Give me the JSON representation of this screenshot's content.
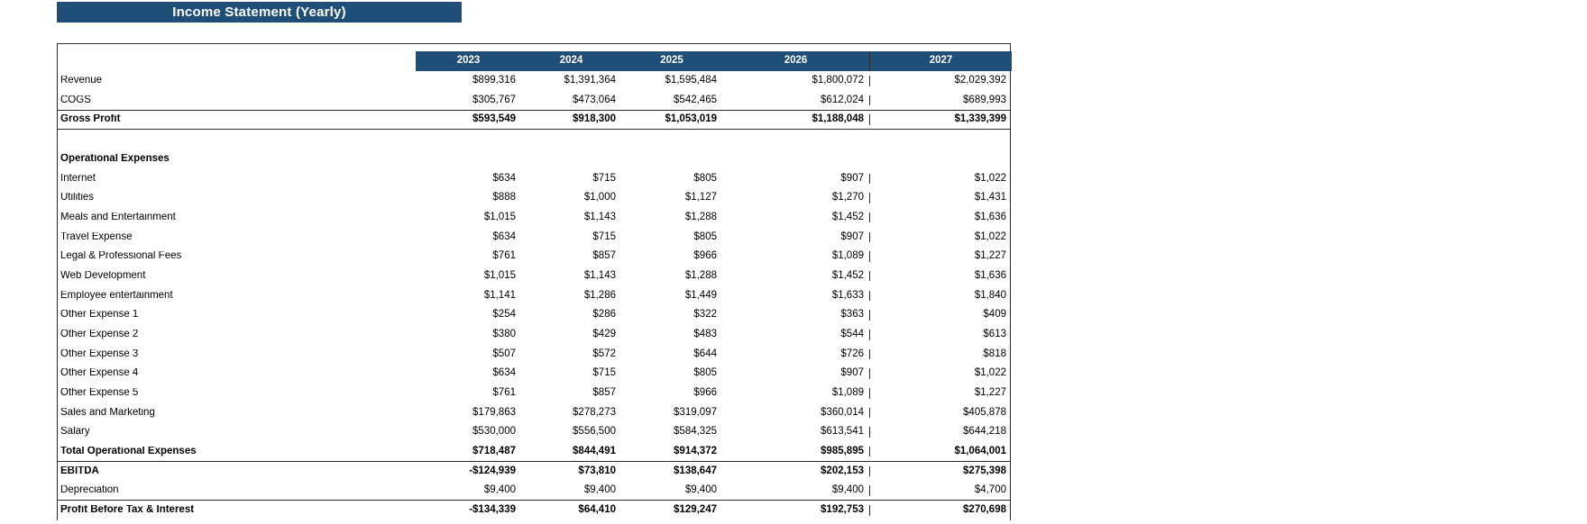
{
  "title": "Income Statement (Yearly)",
  "colors": {
    "banner_bg": "#1f4e79",
    "header_bg": "#1f4e79",
    "border": "#2b2b2b",
    "header_text": "#ffffff",
    "body_text": "#000000"
  },
  "table": {
    "years": [
      "2023",
      "2024",
      "2025",
      "2026",
      "2027"
    ],
    "rows": [
      {
        "label": "Revenue",
        "values": [
          "$899,316",
          "$1,391,364",
          "$1,595,484",
          "$1,800,072",
          "$2,029,392"
        ]
      },
      {
        "label": "COGS",
        "values": [
          "$305,767",
          "$473,064",
          "$542,465",
          "$612,024",
          "$689,993"
        ]
      },
      {
        "label": "Gross Profit",
        "values": [
          "$593,549",
          "$918,300",
          "$1,053,019",
          "$1,188,048",
          "$1,339,399"
        ],
        "bold": true,
        "border_top": true,
        "border_bottom": true
      },
      {
        "label": "",
        "values": [
          "",
          "",
          "",
          "",
          ""
        ],
        "blank": true
      },
      {
        "label": "Operational Expenses",
        "values": [
          "",
          "",
          "",
          "",
          ""
        ],
        "bold": true
      },
      {
        "label": "Internet",
        "values": [
          "$634",
          "$715",
          "$805",
          "$907",
          "$1,022"
        ]
      },
      {
        "label": "Utilities",
        "values": [
          "$888",
          "$1,000",
          "$1,127",
          "$1,270",
          "$1,431"
        ]
      },
      {
        "label": "Meals and Entertainment",
        "values": [
          "$1,015",
          "$1,143",
          "$1,288",
          "$1,452",
          "$1,636"
        ]
      },
      {
        "label": "Travel Expense",
        "values": [
          "$634",
          "$715",
          "$805",
          "$907",
          "$1,022"
        ]
      },
      {
        "label": "Legal & Professional Fees",
        "values": [
          "$761",
          "$857",
          "$966",
          "$1,089",
          "$1,227"
        ]
      },
      {
        "label": "Web Development",
        "values": [
          "$1,015",
          "$1,143",
          "$1,288",
          "$1,452",
          "$1,636"
        ]
      },
      {
        "label": "Employee entertainment",
        "values": [
          "$1,141",
          "$1,286",
          "$1,449",
          "$1,633",
          "$1,840"
        ]
      },
      {
        "label": "Other Expense 1",
        "values": [
          "$254",
          "$286",
          "$322",
          "$363",
          "$409"
        ]
      },
      {
        "label": "Other Expense 2",
        "values": [
          "$380",
          "$429",
          "$483",
          "$544",
          "$613"
        ]
      },
      {
        "label": "Other Expense 3",
        "values": [
          "$507",
          "$572",
          "$644",
          "$726",
          "$818"
        ]
      },
      {
        "label": "Other Expense 4",
        "values": [
          "$634",
          "$715",
          "$805",
          "$907",
          "$1,022"
        ]
      },
      {
        "label": "Other Expense 5",
        "values": [
          "$761",
          "$857",
          "$966",
          "$1,089",
          "$1,227"
        ]
      },
      {
        "label": "Sales and Marketing",
        "values": [
          "$179,863",
          "$278,273",
          "$319,097",
          "$360,014",
          "$405,878"
        ]
      },
      {
        "label": "Salary",
        "values": [
          "$530,000",
          "$556,500",
          "$584,325",
          "$613,541",
          "$644,218"
        ]
      },
      {
        "label": "Total Operational Expenses",
        "values": [
          "$718,487",
          "$844,491",
          "$914,372",
          "$985,895",
          "$1,064,001"
        ],
        "bold": true,
        "border_bottom": true
      },
      {
        "label": "EBITDA",
        "values": [
          "-$124,939",
          "$73,810",
          "$138,647",
          "$202,153",
          "$275,398"
        ],
        "bold": true
      },
      {
        "label": "Depreciation",
        "values": [
          "$9,400",
          "$9,400",
          "$9,400",
          "$9,400",
          "$4,700"
        ],
        "border_bottom": true
      },
      {
        "label": "Profit Before Tax & Interest",
        "values": [
          "-$134,339",
          "$64,410",
          "$129,247",
          "$192,753",
          "$270,698"
        ],
        "bold": true
      }
    ]
  }
}
